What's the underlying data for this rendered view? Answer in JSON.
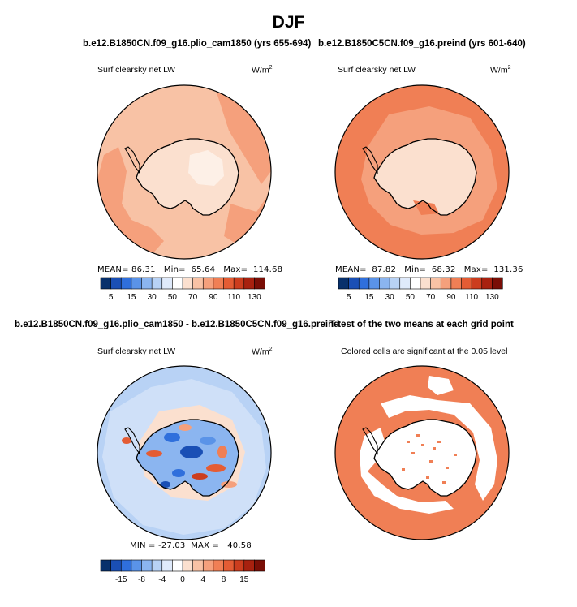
{
  "main_title": "DJF",
  "panels": {
    "tl": {
      "title": "b.e12.B1850CN.f09_g16.plio_cam1850 (yrs 655-694)",
      "left_label": "Surf clearsky net LW",
      "units": "W/m",
      "units_sup": "2",
      "stats": {
        "mean_label": "MEAN=",
        "mean": "86.31",
        "min_label": "Min=",
        "min": "65.64",
        "max_label": "Max=",
        "max": "114.68"
      }
    },
    "tr": {
      "title": "b.e12.B1850C5CN.f09_g16.preind (yrs 601-640)",
      "left_label": "Surf clearsky net LW",
      "units": "W/m",
      "units_sup": "2",
      "stats": {
        "mean_label": "MEAN=",
        "mean": "87.82",
        "min_label": "Min=",
        "min": "68.32",
        "max_label": "Max=",
        "max": "131.36"
      }
    },
    "bl": {
      "title": "b.e12.B1850CN.f09_g16.plio_cam1850 - b.e12.B1850C5CN.f09_g16.preind",
      "left_label": "Surf clearsky net LW",
      "units": "W/m",
      "units_sup": "2",
      "stats": {
        "min_label": "MIN =",
        "min": "-27.03",
        "max_label": "MAX =",
        "max": "40.58"
      }
    },
    "br": {
      "title": "T-test of the two means at each grid point",
      "left_label": "Colored cells are significant at the 0.05 level"
    }
  },
  "chart_data": [
    {
      "type": "heatmap",
      "projection": "south-polar-stereographic",
      "title": "b.e12.B1850CN.f09_g16.plio_cam1850 (yrs 655-694)",
      "variable": "Surf clearsky net LW",
      "units": "W/m2",
      "mean": 86.31,
      "min": 65.64,
      "max": 114.68,
      "colorbar": {
        "levels": [
          5,
          10,
          15,
          20,
          30,
          40,
          50,
          60,
          70,
          80,
          90,
          100,
          110,
          120,
          130
        ],
        "tick_labels": [
          "5",
          "15",
          "30",
          "50",
          "70",
          "90",
          "110",
          "130"
        ],
        "colors": [
          "#08306b",
          "#1a4fb5",
          "#2f6fdc",
          "#5a93e8",
          "#8bb5f0",
          "#b8d2f5",
          "#dfeafb",
          "#ffffff",
          "#fbe0cf",
          "#f8c2a5",
          "#f5a07c",
          "#f07f55",
          "#e45c34",
          "#cc3d1e",
          "#a8210f",
          "#7a0e06"
        ]
      }
    },
    {
      "type": "heatmap",
      "projection": "south-polar-stereographic",
      "title": "b.e12.B1850C5CN.f09_g16.preind (yrs 601-640)",
      "variable": "Surf clearsky net LW",
      "units": "W/m2",
      "mean": 87.82,
      "min": 68.32,
      "max": 131.36,
      "colorbar": {
        "levels": [
          5,
          10,
          15,
          20,
          30,
          40,
          50,
          60,
          70,
          80,
          90,
          100,
          110,
          120,
          130
        ],
        "tick_labels": [
          "5",
          "15",
          "30",
          "50",
          "70",
          "90",
          "110",
          "130"
        ],
        "colors": [
          "#08306b",
          "#1a4fb5",
          "#2f6fdc",
          "#5a93e8",
          "#8bb5f0",
          "#b8d2f5",
          "#dfeafb",
          "#ffffff",
          "#fbe0cf",
          "#f8c2a5",
          "#f5a07c",
          "#f07f55",
          "#e45c34",
          "#cc3d1e",
          "#a8210f",
          "#7a0e06"
        ]
      }
    },
    {
      "type": "heatmap",
      "projection": "south-polar-stereographic",
      "title": "b.e12.B1850CN.f09_g16.plio_cam1850 - b.e12.B1850C5CN.f09_g16.preind",
      "variable": "Surf clearsky net LW",
      "units": "W/m2",
      "min": -27.03,
      "max": 40.58,
      "colorbar": {
        "levels": [
          -20,
          -15,
          -10,
          -8,
          -6,
          -4,
          -2,
          0,
          2,
          4,
          6,
          8,
          10,
          15,
          20
        ],
        "tick_labels": [
          "-15",
          "-8",
          "-4",
          "0",
          "4",
          "8",
          "15"
        ],
        "colors": [
          "#08306b",
          "#1a4fb5",
          "#2f6fdc",
          "#5a93e8",
          "#8bb5f0",
          "#b8d2f5",
          "#dfeafb",
          "#ffffff",
          "#fbe0cf",
          "#f8c2a5",
          "#f5a07c",
          "#f07f55",
          "#e45c34",
          "#cc3d1e",
          "#a8210f",
          "#7a0e06"
        ]
      }
    },
    {
      "type": "heatmap",
      "projection": "south-polar-stereographic",
      "title": "T-test of the two means at each grid point",
      "note": "Colored cells are significant at the 0.05 level",
      "significance_level": 0.05,
      "significant_color": "#f07f55"
    }
  ],
  "colors": {
    "warm_base": "#f5a07c",
    "warm_light": "#f8c2a5",
    "warm_pale": "#fbe0cf",
    "warm_mid": "#f07f55",
    "diff_base": "#b8d2f5",
    "signif": "#f07f55"
  }
}
